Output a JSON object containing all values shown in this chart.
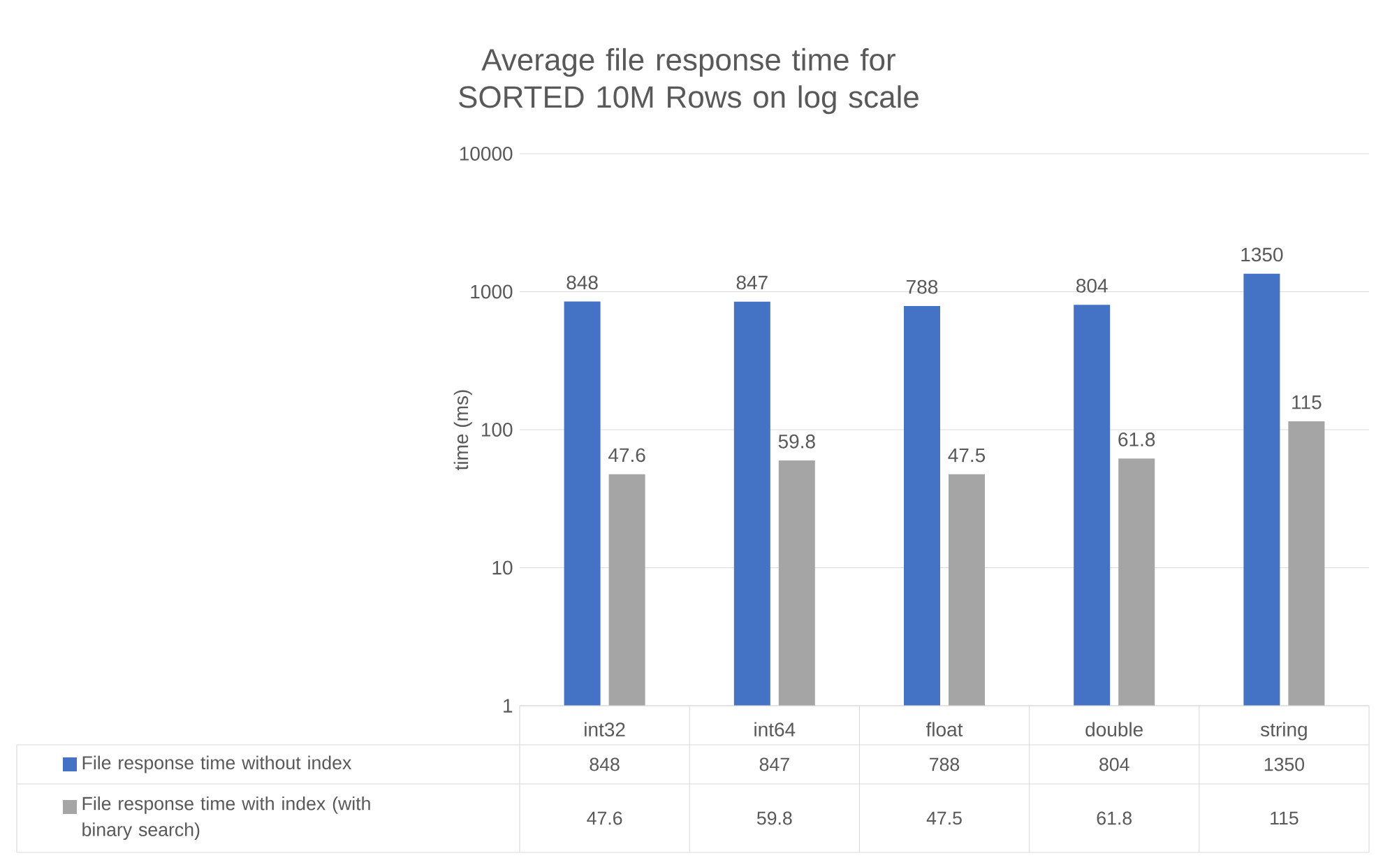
{
  "chart_data": {
    "type": "bar",
    "title": "Average file response time for SORTED 10M Rows on log scale",
    "ylabel": "time (ms)",
    "categories": [
      "int32",
      "int64",
      "float",
      "double",
      "string"
    ],
    "series": [
      {
        "name": "File response time without index",
        "color": "#4472c4",
        "values": [
          848,
          847,
          788,
          804,
          1350
        ],
        "value_labels": [
          "848",
          "847",
          "788",
          "804",
          "1350"
        ]
      },
      {
        "name": "File response time with index (with binary search)",
        "color": "#a5a5a5",
        "values": [
          47.6,
          59.8,
          47.5,
          61.8,
          115
        ],
        "value_labels": [
          "47.6",
          "59.8",
          "47.5",
          "61.8",
          "115"
        ]
      }
    ],
    "ylim": [
      1,
      10000
    ],
    "yticks": [
      1,
      10,
      100,
      1000,
      10000
    ],
    "log": "y",
    "grid": "y",
    "legend": "bottom",
    "data_labels": true
  }
}
